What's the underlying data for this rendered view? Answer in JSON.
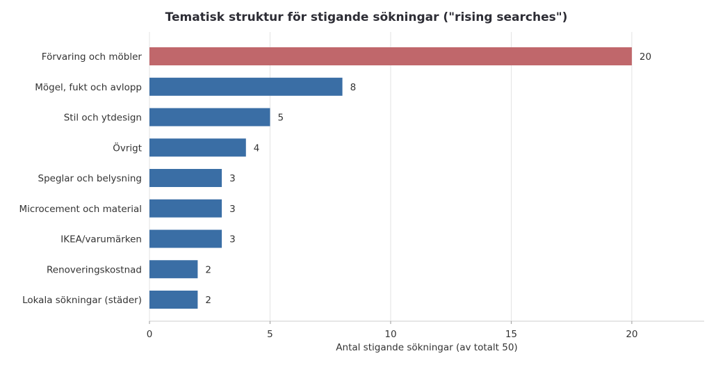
{
  "chart_data": {
    "type": "bar",
    "orientation": "horizontal",
    "title": "Tematisk struktur för stigande sökningar (\"rising searches\")",
    "xlabel": "Antal stigande sökningar (av totalt 50)",
    "ylabel": "",
    "xlim": [
      0,
      23
    ],
    "xticks": [
      0,
      5,
      10,
      15,
      20
    ],
    "grid": "vertical",
    "categories": [
      "Förvaring och möbler",
      "Mögel, fukt och avlopp",
      "Stil och ytdesign",
      "Övrigt",
      "Speglar och belysning",
      "Microcement och material",
      "IKEA/varumärken",
      "Renoveringskostnad",
      "Lokala sökningar (städer)"
    ],
    "values": [
      20,
      8,
      5,
      4,
      3,
      3,
      3,
      2,
      2
    ],
    "colors": [
      "#c0676b",
      "#3a6ea5",
      "#3a6ea5",
      "#3a6ea5",
      "#3a6ea5",
      "#3a6ea5",
      "#3a6ea5",
      "#3a6ea5",
      "#3a6ea5"
    ]
  }
}
